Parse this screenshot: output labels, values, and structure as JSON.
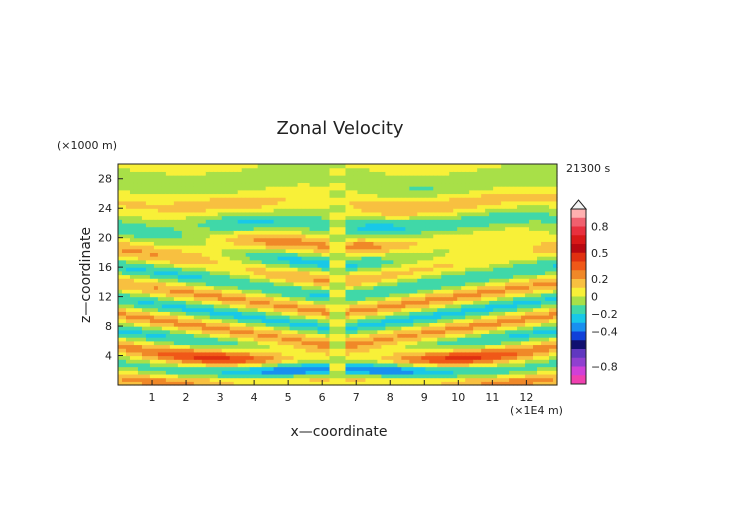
{
  "chart_data": {
    "type": "heatmap",
    "title": "Zonal Velocity",
    "xlabel": "x—coordinate",
    "ylabel": "z—coordinate",
    "x_unit": "(×1E4 m)",
    "y_unit": "(×1000 m)",
    "time_label": "21300 s",
    "xlim": [
      0,
      12.9
    ],
    "ylim": [
      0,
      30
    ],
    "x_ticks": [
      1,
      2,
      3,
      4,
      5,
      6,
      7,
      8,
      9,
      10,
      11,
      12
    ],
    "y_ticks": [
      4,
      8,
      12,
      16,
      20,
      24,
      28
    ],
    "colorbar": {
      "tick_labels": [
        "0.8",
        "0.5",
        "0.2",
        "0",
        "−0.2",
        "−0.4",
        "−0.8"
      ],
      "tick_values": [
        0.8,
        0.5,
        0.2,
        0,
        -0.2,
        -0.4,
        -0.8
      ],
      "levels": [
        {
          "from": 0.9,
          "to": 1.0,
          "color": "#ffb0b0"
        },
        {
          "from": 0.8,
          "to": 0.9,
          "color": "#f0606e"
        },
        {
          "from": 0.7,
          "to": 0.8,
          "color": "#e8303e"
        },
        {
          "from": 0.6,
          "to": 0.7,
          "color": "#d81818"
        },
        {
          "from": 0.5,
          "to": 0.6,
          "color": "#b80810"
        },
        {
          "from": 0.4,
          "to": 0.5,
          "color": "#e03010"
        },
        {
          "from": 0.3,
          "to": 0.4,
          "color": "#f05818"
        },
        {
          "from": 0.2,
          "to": 0.3,
          "color": "#f08828"
        },
        {
          "from": 0.1,
          "to": 0.2,
          "color": "#f8c040"
        },
        {
          "from": 0.0,
          "to": 0.1,
          "color": "#f8f038"
        },
        {
          "from": -0.1,
          "to": 0.0,
          "color": "#a8e048"
        },
        {
          "from": -0.2,
          "to": -0.1,
          "color": "#40d8a8"
        },
        {
          "from": -0.3,
          "to": -0.2,
          "color": "#18c8e8"
        },
        {
          "from": -0.4,
          "to": -0.3,
          "color": "#1890f0"
        },
        {
          "from": -0.5,
          "to": -0.4,
          "color": "#1040d8"
        },
        {
          "from": -0.6,
          "to": -0.5,
          "color": "#101070"
        },
        {
          "from": -0.7,
          "to": -0.6,
          "color": "#6038c0"
        },
        {
          "from": -0.8,
          "to": -0.7,
          "color": "#9040d0"
        },
        {
          "from": -0.9,
          "to": -0.8,
          "color": "#d040d8"
        },
        {
          "from": -1.0,
          "to": -0.9,
          "color": "#f040b0"
        }
      ]
    },
    "field_description": "Symmetric wave pattern about x≈6.5: tilted alternating bands of positive (orange) and negative (cyan/blue) zonal velocity; strongest negative near z≈2, x≈5; strong positive near z≈3-4"
  }
}
